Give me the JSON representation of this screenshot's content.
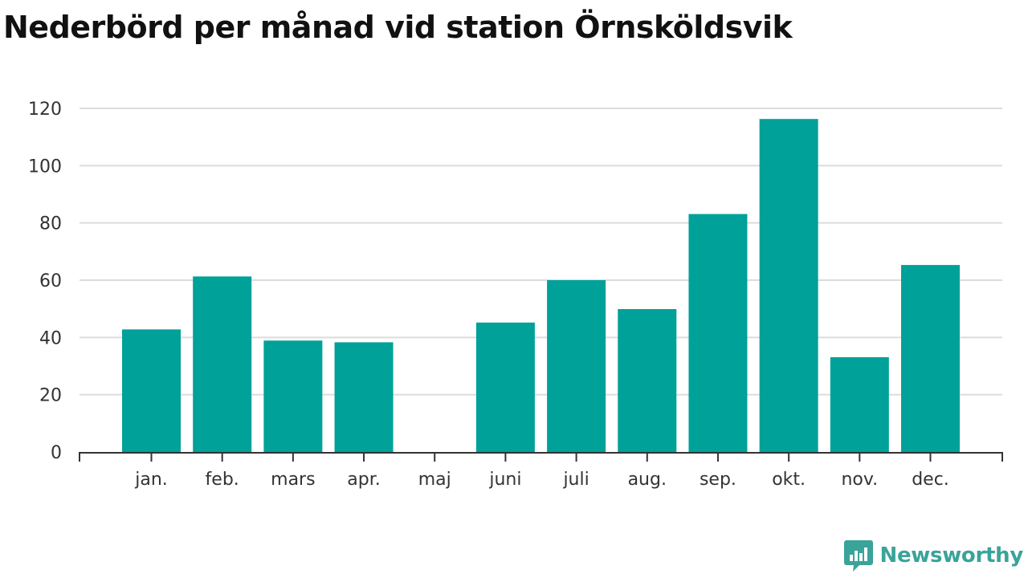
{
  "chart_data": {
    "type": "bar",
    "title": "Nederbörd per månad vid station Örnsköldsvik",
    "categories": [
      "jan.",
      "feb.",
      "mars",
      "apr.",
      "maj",
      "juni",
      "juli",
      "aug.",
      "sep.",
      "okt.",
      "nov.",
      "dec."
    ],
    "values": [
      42.8,
      61.3,
      38.9,
      38.3,
      0,
      45.2,
      60.0,
      49.9,
      83.1,
      116.3,
      33.1,
      65.3
    ],
    "yticks": [
      0,
      20,
      40,
      60,
      80,
      100,
      120
    ],
    "ylim": [
      0,
      120
    ],
    "grid": true,
    "bar_color": "#00a199"
  },
  "brand": {
    "name": "Newsworthy",
    "color": "#3aa39a"
  }
}
